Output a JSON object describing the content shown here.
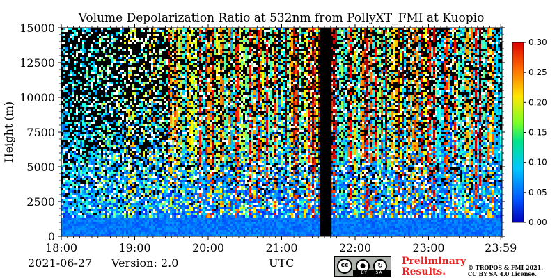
{
  "chart_data": {
    "type": "heatmap",
    "title": "Volume Depolarization Ratio at 532nm from PollyXT_FMI at Kuopio",
    "xlabel": "UTC",
    "ylabel": "Height (m)",
    "x_ticks": [
      "18:00",
      "19:00",
      "20:00",
      "21:00",
      "22:00",
      "23:00",
      "23:59"
    ],
    "x_range_hours": [
      18.0,
      24.0
    ],
    "y_ticks": [
      0,
      2500,
      5000,
      7500,
      10000,
      12500,
      15000
    ],
    "ylim": [
      0,
      15000
    ],
    "colorbar": {
      "ticks": [
        "0.00",
        "0.05",
        "0.10",
        "0.15",
        "0.20",
        "0.25",
        "0.30"
      ],
      "range": [
        0.0,
        0.3
      ],
      "colormap": "jet"
    },
    "missing_data_hours": [
      21.52,
      21.68
    ]
  },
  "footer": {
    "date": "2021-06-27",
    "version": "Version: 2.0",
    "utc_label": "UTC",
    "preliminary_line1": "Preliminary",
    "preliminary_line2": "Results.",
    "copyright_line1": "© TROPOS & FMI 2021.",
    "copyright_line2": "CC BY SA 4.0 License.",
    "license_badge": {
      "by": "BY",
      "sa": "SA",
      "cc": "cc"
    }
  },
  "colors": {
    "preliminary": "#e8201f",
    "gap": "#000000"
  }
}
